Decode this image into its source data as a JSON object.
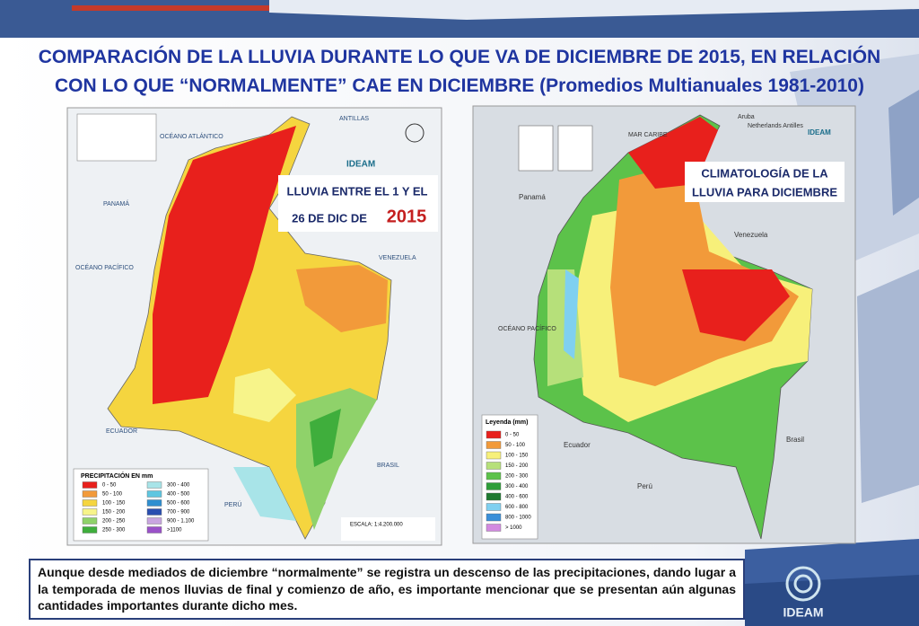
{
  "header": {
    "title_line1": "COMPARACIÓN DE LA LLUVIA DURANTE LO QUE VA DE DICIEMBRE DE 2015, EN RELACIÓN",
    "title_line2": "CON LO QUE “NORMALMENTE” CAE EN DICIEMBRE (Promedios Multianuales 1981-2010)"
  },
  "left_map": {
    "caption_line1": "LLUVIA ENTRE EL 1 Y EL",
    "caption_line2": "26 DE DIC DE ",
    "caption_year": "2015",
    "logo": "IDEAM",
    "places": {
      "antillas": "ANTILLAS",
      "atlantic": "OCÉANO ATLÁNTICO",
      "panama": "PANAMÁ",
      "pacific": "OCÉANO PACÍFICO",
      "venezuela": "VENEZUELA",
      "ecuador": "ECUADOR",
      "brasil": "BRASIL",
      "peru": "PERÚ"
    },
    "legend_title": "PRECIPITACIÓN EN mm",
    "legend": [
      {
        "label": "0 - 50",
        "color": "#e8201c"
      },
      {
        "label": "50 - 100",
        "color": "#f29a3a"
      },
      {
        "label": "100 - 150",
        "color": "#f5d53f"
      },
      {
        "label": "150 - 200",
        "color": "#f7f48a"
      },
      {
        "label": "200 - 250",
        "color": "#8fd26a"
      },
      {
        "label": "250 - 300",
        "color": "#3fae3c"
      },
      {
        "label": "300 - 400",
        "color": "#a8e4e8"
      },
      {
        "label": "400 - 500",
        "color": "#5fc6e0"
      },
      {
        "label": "500 - 600",
        "color": "#2f8fd0"
      },
      {
        "label": "700 - 900",
        "color": "#2a4fb0"
      },
      {
        "label": "900 - 1.100",
        "color": "#c9a6e0"
      },
      {
        "label": ">1100",
        "color": "#9a52c8"
      }
    ],
    "scale": "ESCALA: 1:4.200.000"
  },
  "right_map": {
    "caption_line1": "CLIMATOLOGÍA DE LA",
    "caption_line2": "LLUVIA PARA DICIEMBRE",
    "logo": "IDEAM",
    "places": {
      "aruba": "Aruba",
      "antilles": "Netherlands Antilles",
      "caribe": "MAR CARIBE",
      "panama": "Panamá",
      "venezuela": "Venezuela",
      "pacific": "OCÉANO PACÍFICO",
      "ecuador": "Ecuador",
      "brasil": "Brasil",
      "peru": "Perú"
    },
    "legend_title": "Leyenda (mm)",
    "legend": [
      {
        "label": "0 - 50",
        "color": "#e8201c"
      },
      {
        "label": "50 - 100",
        "color": "#f29a3a"
      },
      {
        "label": "100 - 150",
        "color": "#f7f07a"
      },
      {
        "label": "150 - 200",
        "color": "#b6e07a"
      },
      {
        "label": "200 - 300",
        "color": "#5cc24a"
      },
      {
        "label": "300 - 400",
        "color": "#2f9e3a"
      },
      {
        "label": "400 - 600",
        "color": "#1f7a30"
      },
      {
        "label": "600 - 800",
        "color": "#7fd0f0"
      },
      {
        "label": "800 - 1000",
        "color": "#3a8fd8"
      },
      {
        "label": "> 1000",
        "color": "#d28ae0"
      }
    ]
  },
  "footer": {
    "text": "Aunque desde mediados de diciembre “normalmente” se registra un descenso de las precipitaciones, dando lugar a la temporada de menos lluvias de final y comienzo de año, es importante mencionar que se presentan aún algunas cantidades importantes durante dicho mes.",
    "logo": "IDEAM"
  }
}
